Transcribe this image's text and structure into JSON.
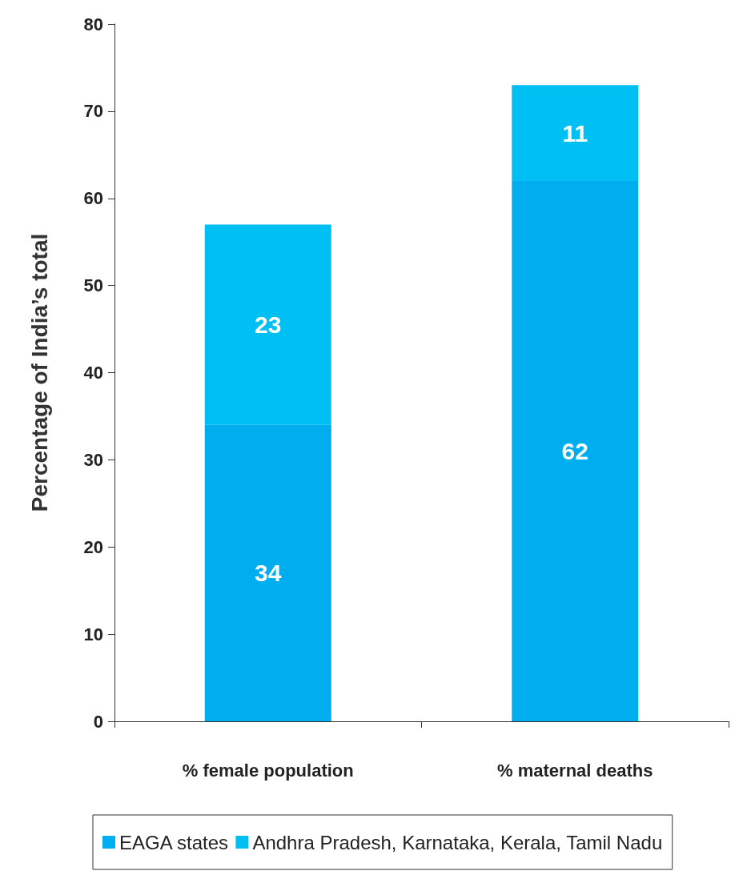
{
  "chart_data": {
    "type": "bar",
    "ylabel": "Percentage of India’s total",
    "categories": [
      "% female population",
      "% maternal deaths"
    ],
    "series": [
      {
        "name": "EAGA states",
        "color": "#00aeef",
        "values": [
          34,
          62
        ]
      },
      {
        "name": "Andhra Pradesh, Karnataka, Kerala, Tamil Nadu",
        "color": "#00c0f3",
        "values": [
          23,
          11
        ]
      }
    ],
    "stacked": true,
    "data_labels": true,
    "ylim": [
      0,
      80
    ],
    "yticks": [
      0,
      10,
      20,
      30,
      40,
      50,
      60,
      70,
      80
    ],
    "grid": false,
    "legend": "bottom"
  }
}
